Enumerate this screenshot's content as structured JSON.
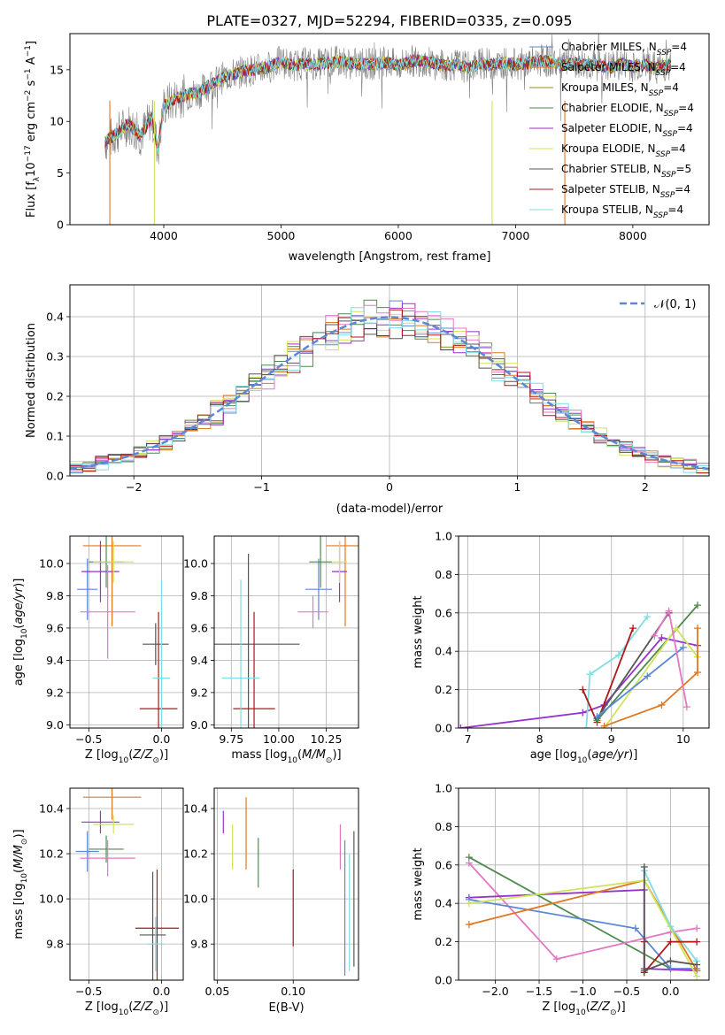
{
  "figure_title": "PLATE=0327, MJD=52294, FIBERID=0335, z=0.095",
  "colors": {
    "Chabrier MILES": "#5b87d6",
    "Salpeter MILES": "#e17820",
    "Kroupa MILES": "#a08a1e",
    "Chabrier ELODIE": "#4f8a4f",
    "Salpeter ELODIE": "#9932cc",
    "Kroupa ELODIE": "#d2e35a",
    "Chabrier STELIB": "#555555",
    "Salpeter STELIB": "#b01717",
    "Kroupa STELIB": "#7fdde4",
    "Pink": "#e377c2",
    "data": "#808080"
  },
  "chart_data": [
    {
      "id": "spectrum",
      "type": "line",
      "xlabel": "wavelength [Angstrom, rest frame]",
      "ylabel": "Flux [f_λ10^-17 erg cm^-2 s^-1 A^-1]",
      "xlim": [
        3200,
        8650
      ],
      "ylim": [
        0,
        18.5
      ],
      "xticks": [
        4000,
        5000,
        6000,
        7000,
        8000
      ],
      "yticks": [
        0,
        5,
        10,
        15
      ],
      "legend": {
        "placement": "right",
        "entries": [
          {
            "name": "Chabrier MILES",
            "nssp": "4"
          },
          {
            "name": "Salpeter MILES",
            "nssp": "4"
          },
          {
            "name": "Kroupa MILES",
            "nssp": "4"
          },
          {
            "name": "Chabrier ELODIE",
            "nssp": "4"
          },
          {
            "name": "Salpeter ELODIE",
            "nssp": "4"
          },
          {
            "name": "Kroupa ELODIE",
            "nssp": "4"
          },
          {
            "name": "Chabrier STELIB",
            "nssp": "5"
          },
          {
            "name": "Salpeter STELIB",
            "nssp": "4"
          },
          {
            "name": "Kroupa STELIB",
            "nssp": "4"
          }
        ]
      },
      "continuum": [
        [
          3500,
          8.0
        ],
        [
          3600,
          8.8
        ],
        [
          3700,
          9.8
        ],
        [
          3800,
          8.6
        ],
        [
          3900,
          10.4
        ],
        [
          3950,
          7.2
        ],
        [
          4000,
          11.5
        ],
        [
          4100,
          12.2
        ],
        [
          4200,
          12.6
        ],
        [
          4300,
          12.8
        ],
        [
          4400,
          13.6
        ],
        [
          4500,
          14.2
        ],
        [
          4600,
          14.6
        ],
        [
          4700,
          14.9
        ],
        [
          4800,
          15.0
        ],
        [
          4900,
          15.3
        ],
        [
          5000,
          15.8
        ],
        [
          5100,
          15.4
        ],
        [
          5200,
          15.6
        ],
        [
          5300,
          15.5
        ],
        [
          5400,
          15.7
        ],
        [
          5500,
          15.8
        ],
        [
          5600,
          15.6
        ],
        [
          5700,
          15.5
        ],
        [
          5800,
          15.6
        ],
        [
          5900,
          15.7
        ],
        [
          6000,
          15.4
        ],
        [
          6100,
          15.8
        ],
        [
          6200,
          15.9
        ],
        [
          6300,
          15.6
        ],
        [
          6400,
          15.4
        ],
        [
          6500,
          15.5
        ],
        [
          6600,
          15.2
        ],
        [
          6700,
          15.6
        ],
        [
          6800,
          15.5
        ],
        [
          6900,
          15.7
        ],
        [
          7000,
          15.5
        ],
        [
          7100,
          15.6
        ],
        [
          7200,
          15.9
        ],
        [
          7300,
          15.8
        ],
        [
          7400,
          15.4
        ],
        [
          7500,
          15.6
        ],
        [
          7600,
          15.5
        ],
        [
          7700,
          15.4
        ],
        [
          7800,
          15.2
        ],
        [
          7900,
          15.6
        ],
        [
          8000,
          15.3
        ],
        [
          8100,
          15.5
        ],
        [
          8200,
          15.2
        ],
        [
          8300,
          15.5
        ]
      ]
    },
    {
      "id": "residuals",
      "type": "line",
      "xlabel": "(data-model)/error",
      "ylabel": "Normed distribution",
      "xlim": [
        -2.5,
        2.5
      ],
      "ylim": [
        0,
        0.48
      ],
      "xticks": [
        -2,
        -1,
        0,
        1,
        2
      ],
      "xtick_labels": [
        "−2",
        "−1",
        "0",
        "1",
        "2"
      ],
      "yticks": [
        0,
        0.1,
        0.2,
        0.3,
        0.4
      ],
      "ytick_labels": [
        "0.0",
        "0.1",
        "0.2",
        "0.3",
        "0.4"
      ],
      "legend": {
        "placement": "top-right",
        "label": "𝒩(0, 1)"
      },
      "gaussian": {
        "mean": 0,
        "sigma": 1,
        "color": "#5b87d6"
      }
    },
    {
      "id": "age-vs-Z",
      "type": "scatter",
      "xlabel": "Z [log10(Z/Z⊙)]",
      "ylabel": "age [log10(age/yr)]",
      "xlim": [
        -0.63,
        0.15
      ],
      "ylim": [
        8.98,
        10.17
      ],
      "xticks": [
        -0.5,
        0.0
      ],
      "xtick_labels": [
        "−0.5",
        "0.0"
      ],
      "yticks": [
        9.0,
        9.2,
        9.4,
        9.6,
        9.8,
        10.0
      ],
      "ytick_labels": [
        "9.0",
        "9.2",
        "9.4",
        "9.6",
        "9.8",
        "10.0"
      ],
      "points": [
        {
          "x": -0.51,
          "y": 9.84,
          "xerr": 0.07,
          "yerr": 0.19,
          "color": "#5b87d6"
        },
        {
          "x": -0.34,
          "y": 10.11,
          "xerr": 0.2,
          "yerr": 0.5,
          "color": "#e17820"
        },
        {
          "x": -0.38,
          "y": 10.01,
          "xerr": 0.12,
          "yerr": 0.16,
          "color": "#4f8a4f"
        },
        {
          "x": -0.42,
          "y": 9.95,
          "xerr": 0.13,
          "yerr": 0.19,
          "color": "#9932cc"
        },
        {
          "x": -0.33,
          "y": 10.01,
          "xerr": 0.14,
          "yerr": 0.13,
          "color": "#d2e35a"
        },
        {
          "x": -0.37,
          "y": 9.7,
          "xerr": 0.19,
          "yerr": 0.29,
          "color": "#e377c2"
        },
        {
          "x": -0.04,
          "y": 9.5,
          "xerr": 0.09,
          "yerr": 0.13,
          "color": "#555555"
        },
        {
          "x": -0.02,
          "y": 9.1,
          "xerr": 0.13,
          "yerr": 0.6,
          "color": "#b01717"
        },
        {
          "x": 0.0,
          "y": 9.29,
          "xerr": 0.06,
          "yerr": 0.61,
          "color": "#7fdde4"
        }
      ]
    },
    {
      "id": "age-vs-mass",
      "type": "scatter",
      "xlabel": "mass [log10(M/M⊙)]",
      "ylabel": "",
      "xlim": [
        9.66,
        10.42
      ],
      "ylim": [
        8.98,
        10.17
      ],
      "xticks": [
        9.75,
        10.0,
        10.25
      ],
      "xtick_labels": [
        "9.75",
        "10.00",
        "10.25"
      ],
      "yticks": [
        9.0,
        9.2,
        9.4,
        9.6,
        9.8,
        10.0
      ],
      "ytick_labels": [
        "9.0",
        "9.2",
        "9.4",
        "9.6",
        "9.8",
        "10.0"
      ],
      "points": [
        {
          "x": 10.21,
          "y": 9.84,
          "xerr": 0.07,
          "yerr": 0.19,
          "color": "#5b87d6"
        },
        {
          "x": 10.35,
          "y": 10.11,
          "xerr": 0.1,
          "yerr": 0.5,
          "color": "#e17820"
        },
        {
          "x": 10.22,
          "y": 10.01,
          "xerr": 0.06,
          "yerr": 0.16,
          "color": "#4f8a4f"
        },
        {
          "x": 10.32,
          "y": 9.95,
          "xerr": 0.04,
          "yerr": 0.19,
          "color": "#9932cc"
        },
        {
          "x": 10.32,
          "y": 10.01,
          "xerr": 0.04,
          "yerr": 0.13,
          "color": "#d2e35a"
        },
        {
          "x": 10.18,
          "y": 9.7,
          "xerr": 0.08,
          "yerr": 0.1,
          "color": "#e377c2"
        },
        {
          "x": 9.84,
          "y": 9.5,
          "xerr": 0.27,
          "yerr": 0.56,
          "color": "#555555"
        },
        {
          "x": 9.87,
          "y": 9.1,
          "xerr": 0.11,
          "yerr": 0.6,
          "color": "#b01717"
        },
        {
          "x": 9.8,
          "y": 9.29,
          "xerr": 0.1,
          "yerr": 0.61,
          "color": "#7fdde4"
        }
      ]
    },
    {
      "id": "weight-vs-age",
      "type": "line",
      "xlabel": "age [log10(age/yr)]",
      "ylabel": "mass weight",
      "xlim": [
        6.87,
        10.36
      ],
      "ylim": [
        0,
        1
      ],
      "xticks": [
        7,
        8,
        9,
        10
      ],
      "yticks": [
        0,
        0.2,
        0.4,
        0.6,
        0.8,
        1.0
      ],
      "ytick_labels": [
        "0.0",
        "0.2",
        "0.4",
        "0.6",
        "0.8",
        "1.0"
      ],
      "series": [
        {
          "color": "#9932cc",
          "points": [
            [
              6.9,
              0.0
            ],
            [
              8.6,
              0.08
            ],
            [
              8.9,
              0.12
            ],
            [
              9.7,
              0.47
            ],
            [
              10.2,
              0.43
            ]
          ]
        },
        {
          "color": "#7fdde4",
          "points": [
            [
              8.65,
              0.0
            ],
            [
              8.7,
              0.28
            ],
            [
              9.1,
              0.38
            ],
            [
              9.5,
              0.58
            ]
          ]
        },
        {
          "color": "#b01717",
          "points": [
            [
              8.6,
              0.2
            ],
            [
              8.8,
              0.03
            ],
            [
              9.3,
              0.52
            ]
          ]
        },
        {
          "color": "#555555",
          "points": [
            [
              8.8,
              0.05
            ],
            [
              9.8,
              0.6
            ]
          ]
        },
        {
          "color": "#4f8a4f",
          "points": [
            [
              8.8,
              0.04
            ],
            [
              10.2,
              0.64
            ]
          ]
        },
        {
          "color": "#d2e35a",
          "points": [
            [
              8.9,
              0.0
            ],
            [
              9.9,
              0.52
            ],
            [
              10.2,
              0.37
            ]
          ]
        },
        {
          "color": "#e17820",
          "points": [
            [
              8.9,
              0.01
            ],
            [
              9.7,
              0.12
            ],
            [
              10.2,
              0.29
            ],
            [
              10.2,
              0.52
            ]
          ]
        },
        {
          "color": "#5b87d6",
          "points": [
            [
              8.8,
              0.06
            ],
            [
              9.5,
              0.27
            ],
            [
              10.0,
              0.42
            ]
          ]
        },
        {
          "color": "#e377c2",
          "points": [
            [
              9.6,
              0.48
            ],
            [
              9.8,
              0.61
            ],
            [
              10.05,
              0.11
            ]
          ]
        }
      ]
    },
    {
      "id": "mass-vs-Z",
      "type": "scatter",
      "xlabel": "Z [log10(Z/Z⊙)]",
      "ylabel": "mass [log10(M/M⊙)]",
      "xlim": [
        -0.63,
        0.15
      ],
      "ylim": [
        9.64,
        10.49
      ],
      "xticks": [
        -0.5,
        0.0
      ],
      "xtick_labels": [
        "−0.5",
        "0.0"
      ],
      "yticks": [
        9.8,
        10.0,
        10.2,
        10.4
      ],
      "ytick_labels": [
        "9.8",
        "10.0",
        "10.2",
        "10.4"
      ],
      "points": [
        {
          "x": -0.51,
          "y": 10.21,
          "xerr": 0.08,
          "yerr": 0.09,
          "color": "#5b87d6"
        },
        {
          "x": -0.34,
          "y": 10.45,
          "xerr": 0.2,
          "yerr": 0.1,
          "color": "#e17820"
        },
        {
          "x": -0.38,
          "y": 10.22,
          "xerr": 0.12,
          "yerr": 0.06,
          "color": "#4f8a4f"
        },
        {
          "x": -0.42,
          "y": 10.34,
          "xerr": 0.13,
          "yerr": 0.05,
          "color": "#9932cc"
        },
        {
          "x": -0.33,
          "y": 10.33,
          "xerr": 0.14,
          "yerr": 0.04,
          "color": "#d2e35a"
        },
        {
          "x": -0.37,
          "y": 10.18,
          "xerr": 0.19,
          "yerr": 0.08,
          "color": "#e377c2"
        },
        {
          "x": -0.06,
          "y": 9.84,
          "xerr": 0.09,
          "yerr": 0.28,
          "color": "#555555"
        },
        {
          "x": -0.03,
          "y": 9.87,
          "xerr": 0.15,
          "yerr": 0.26,
          "color": "#b01717"
        },
        {
          "x": -0.04,
          "y": 9.8,
          "xerr": 0.06,
          "yerr": 0.12,
          "color": "#7fdde4"
        }
      ]
    },
    {
      "id": "mass-vs-ebv",
      "type": "scatter",
      "xlabel": "E(B-V)",
      "ylabel": "",
      "xlim": [
        0.048,
        0.143
      ],
      "ylim": [
        9.64,
        10.49
      ],
      "xticks": [
        0.05,
        0.1
      ],
      "xtick_labels": [
        "0.05",
        "0.10"
      ],
      "yticks": [
        9.8,
        10.0,
        10.2,
        10.4
      ],
      "ytick_labels": [
        "9.8",
        "10.0",
        "10.2",
        "10.4"
      ],
      "points": [
        {
          "x": 0.054,
          "y": 10.34,
          "yerr": 0.05,
          "color": "#9932cc"
        },
        {
          "x": 0.06,
          "y": 10.23,
          "yerr": 0.1,
          "color": "#d2e35a"
        },
        {
          "x": 0.069,
          "y": 10.29,
          "yerr": 0.16,
          "color": "#e17820"
        },
        {
          "x": 0.077,
          "y": 10.16,
          "yerr": 0.11,
          "color": "#4f8a4f"
        },
        {
          "x": 0.1,
          "y": 9.96,
          "yerr": 0.17,
          "color": "#b01717"
        },
        {
          "x": 0.131,
          "y": 10.23,
          "yerr": 0.1,
          "color": "#e377c2"
        },
        {
          "x": 0.134,
          "y": 9.96,
          "yerr": 0.3,
          "color": "#5b87d6"
        },
        {
          "x": 0.137,
          "y": 9.94,
          "yerr": 0.26,
          "color": "#7fdde4"
        },
        {
          "x": 0.14,
          "y": 10.0,
          "yerr": 0.3,
          "color": "#555555"
        }
      ]
    },
    {
      "id": "weight-vs-Z",
      "type": "line",
      "xlabel": "Z [log10(Z/Z⊙)]",
      "ylabel": "mass weight",
      "xlim": [
        -2.42,
        0.44
      ],
      "ylim": [
        0,
        1
      ],
      "xticks": [
        -2.0,
        -1.5,
        -1.0,
        -0.5,
        0.0
      ],
      "xtick_labels": [
        "−2.0",
        "−1.5",
        "−1.0",
        "−0.5",
        "0.0"
      ],
      "yticks": [
        0,
        0.2,
        0.4,
        0.6,
        0.8,
        1.0
      ],
      "ytick_labels": [
        "0.0",
        "0.2",
        "0.4",
        "0.6",
        "0.8",
        "1.0"
      ],
      "series": [
        {
          "color": "#4f8a4f",
          "points": [
            [
              -2.3,
              0.64
            ],
            [
              0.0,
              0.06
            ],
            [
              0.3,
              0.05
            ]
          ]
        },
        {
          "color": "#e377c2",
          "points": [
            [
              -2.3,
              0.61
            ],
            [
              -1.3,
              0.11
            ],
            [
              0.0,
              0.25
            ],
            [
              0.3,
              0.27
            ]
          ]
        },
        {
          "color": "#9932cc",
          "points": [
            [
              -2.3,
              0.43
            ],
            [
              -0.3,
              0.47
            ],
            [
              -0.3,
              0.06
            ],
            [
              0.3,
              0.05
            ]
          ]
        },
        {
          "color": "#5b87d6",
          "points": [
            [
              -2.3,
              0.42
            ],
            [
              -0.4,
              0.27
            ],
            [
              0.0,
              0.06
            ],
            [
              0.3,
              0.06
            ]
          ]
        },
        {
          "color": "#e17820",
          "points": [
            [
              -2.3,
              0.29
            ],
            [
              -0.3,
              0.52
            ],
            [
              0.3,
              0.05
            ]
          ]
        },
        {
          "color": "#d2e35a",
          "points": [
            [
              -2.3,
              0.4
            ],
            [
              -0.3,
              0.52
            ],
            [
              0.3,
              0.02
            ]
          ]
        },
        {
          "color": "#7fdde4",
          "points": [
            [
              -0.3,
              0.57
            ],
            [
              0.0,
              0.28
            ],
            [
              0.3,
              0.1
            ]
          ]
        },
        {
          "color": "#b01717",
          "points": [
            [
              -0.3,
              0.2
            ],
            [
              -0.3,
              0.04
            ],
            [
              0.0,
              0.2
            ],
            [
              0.3,
              0.2
            ]
          ]
        },
        {
          "color": "#555555",
          "points": [
            [
              -0.3,
              0.59
            ],
            [
              -0.3,
              0.05
            ],
            [
              0.0,
              0.1
            ],
            [
              0.3,
              0.08
            ]
          ]
        }
      ]
    }
  ]
}
